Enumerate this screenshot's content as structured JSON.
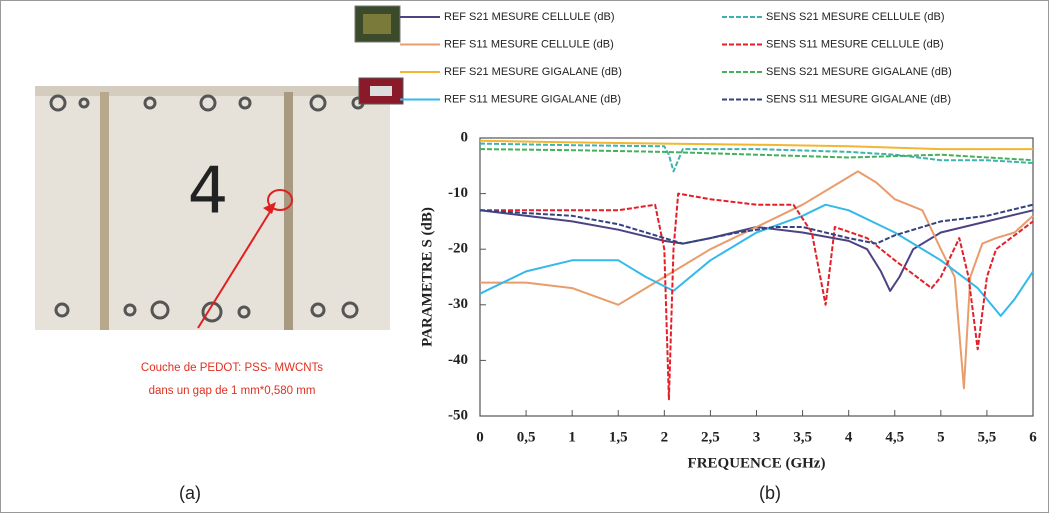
{
  "photo": {
    "digit": "4",
    "annotation": [
      "Couche  de PEDOT: PSS- MWCNTs",
      "dans un gap de 1 mm*0,580 mm"
    ],
    "label": "(a)"
  },
  "chart_data": {
    "type": "line",
    "label": "(b)",
    "xlabel": "FREQUENCE (GHz)",
    "ylabel": "PARAMETRE S (dB)",
    "xlim": [
      0,
      6
    ],
    "ylim": [
      -50,
      0
    ],
    "xticks": [
      0,
      {
        "value": 0.5,
        "label": "0,5"
      },
      1,
      {
        "value": 1.5,
        "label": "1,5"
      },
      2,
      {
        "value": 2.5,
        "label": "2,5"
      },
      3,
      {
        "value": 3.5,
        "label": "3,5"
      },
      4,
      {
        "value": 4.5,
        "label": "4,5"
      },
      5,
      {
        "value": 5.5,
        "label": "5,5"
      },
      6
    ],
    "yticks": [
      0,
      -10,
      -20,
      -30,
      -40,
      -50
    ],
    "grid": false,
    "legend": "top",
    "series": [
      {
        "name": "REF S21 MESURE CELLULE  (dB)",
        "color": "#4b4383",
        "style": "solid",
        "x": [
          0,
          0.5,
          1,
          1.5,
          2,
          2.2,
          2.5,
          3,
          3.5,
          4,
          4.2,
          4.35,
          4.45,
          4.55,
          4.7,
          5,
          5.5,
          6
        ],
        "values": [
          -13,
          -14,
          -15,
          -16.5,
          -18.5,
          -19,
          -18,
          -16,
          -17,
          -18.5,
          -20,
          -24,
          -27.5,
          -25,
          -20,
          -17,
          -15,
          -13
        ]
      },
      {
        "name": "REF S11 MESURE CELLULE  (dB)",
        "color": "#e99c6c",
        "style": "solid",
        "x": [
          0,
          0.5,
          1,
          1.5,
          1.8,
          2,
          2.5,
          3,
          3.5,
          3.9,
          4.1,
          4.3,
          4.5,
          4.8,
          5,
          5.15,
          5.25,
          5.32,
          5.45,
          5.6,
          5.8,
          6
        ],
        "values": [
          -26,
          -26,
          -27,
          -30,
          -27,
          -25,
          -20,
          -16,
          -12,
          -8,
          -6,
          -8,
          -11,
          -13,
          -20,
          -25,
          -45,
          -25,
          -19,
          -18,
          -17,
          -14
        ]
      },
      {
        "name": "REF S21 MESURE GIGALANE  (dB)",
        "color": "#f2b632",
        "style": "solid",
        "x": [
          0,
          1,
          2,
          3,
          4,
          5,
          6
        ],
        "values": [
          -0.5,
          -0.8,
          -1,
          -1.2,
          -1.5,
          -2,
          -2
        ]
      },
      {
        "name": "REF S11 MESURE GIGALANE  (dB)",
        "color": "#34b9ea",
        "style": "solid",
        "x": [
          0,
          0.5,
          1,
          1.5,
          1.8,
          2.1,
          2.5,
          3,
          3.5,
          3.75,
          4,
          4.5,
          5,
          5.4,
          5.65,
          5.8,
          6
        ],
        "values": [
          -28,
          -24,
          -22,
          -22,
          -25,
          -27.5,
          -22,
          -17,
          -14,
          -12,
          -13,
          -17,
          -22,
          -27,
          -32,
          -29,
          -24
        ]
      },
      {
        "name": "SENS S21 MESURE CELLULE  (dB)",
        "color": "#3fb2b0",
        "style": "dashed",
        "x": [
          0,
          1,
          2,
          2.05,
          2.1,
          2.2,
          3,
          4,
          4.5,
          5,
          5.5,
          6
        ],
        "values": [
          -1,
          -1.3,
          -1.5,
          -3,
          -6,
          -2,
          -2,
          -2.5,
          -3,
          -4,
          -4,
          -4.5
        ]
      },
      {
        "name": "SENS S11 MESURE CELLULE  (dB)",
        "color": "#e3202a",
        "style": "dashed",
        "x": [
          0,
          0.5,
          1,
          1.5,
          1.9,
          2,
          2.05,
          2.1,
          2.15,
          2.5,
          3,
          3.4,
          3.6,
          3.75,
          3.85,
          4.2,
          4.5,
          4.9,
          5,
          5.2,
          5.3,
          5.4,
          5.5,
          5.6,
          6
        ],
        "values": [
          -13,
          -13,
          -13,
          -13,
          -12,
          -20,
          -47,
          -20,
          -10,
          -11,
          -12,
          -12,
          -17,
          -30,
          -16,
          -18,
          -22,
          -27,
          -25,
          -18,
          -25,
          -38,
          -25,
          -20,
          -15
        ]
      },
      {
        "name": "SENS S21 MESURE GIGALANE  (dB)",
        "color": "#44b05a",
        "style": "dashed",
        "x": [
          0,
          1,
          2,
          3,
          4,
          5,
          6
        ],
        "values": [
          -2,
          -2.2,
          -2.5,
          -3,
          -3.5,
          -3,
          -4
        ]
      },
      {
        "name": "SENS S11 MESURE GIGALANE  (dB)",
        "color": "#34427e",
        "style": "dashed",
        "x": [
          0,
          0.5,
          1,
          1.5,
          1.8,
          2.2,
          2.8,
          3.2,
          3.5,
          4,
          4.3,
          4.5,
          5,
          5.5,
          6
        ],
        "values": [
          -13,
          -13.5,
          -14,
          -15.5,
          -17,
          -19,
          -17,
          -16,
          -16,
          -18,
          -19,
          -17.5,
          -15,
          -14,
          -12
        ]
      }
    ]
  }
}
